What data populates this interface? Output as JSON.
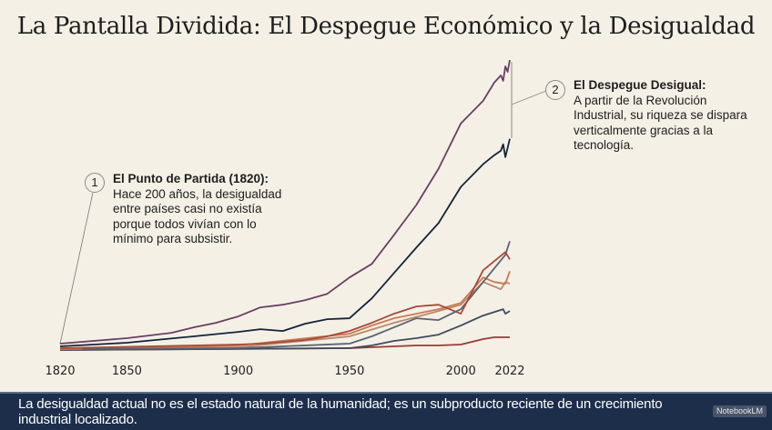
{
  "title": "La Pantalla Dividida: El Despegue Económico y la Desigualdad",
  "annotations": [
    {
      "number": "1",
      "heading": "El Punto de Partida (1820):",
      "lines": [
        "Hace 200 años, la desigualdad",
        "entre países casi no existía",
        "porque todos vivían con lo",
        "mínimo para subsistir."
      ]
    },
    {
      "number": "2",
      "heading": "El Despegue Desigual:",
      "lines": [
        "A partir de la Revolución",
        "Industrial, su riqueza se dispara",
        "verticalmente gracias a la",
        "tecnología."
      ]
    }
  ],
  "banner": {
    "text": "La desigualdad actual no es el estado natural de la humanidad; es un subproducto reciente de un crecimiento industrial localizado.",
    "watermark": "NotebookLM"
  },
  "chart_data": {
    "type": "line",
    "title": "",
    "xlabel": "",
    "ylabel": "",
    "xticks": [
      1820,
      1850,
      1900,
      1950,
      2000,
      2022
    ],
    "xlim": [
      1820,
      2022
    ],
    "ylim": [
      0,
      320
    ],
    "grid": false,
    "legend": "none",
    "series": [
      {
        "color": "#6b3f63",
        "points": [
          [
            1820,
            6
          ],
          [
            1850,
            12
          ],
          [
            1870,
            18
          ],
          [
            1880,
            24
          ],
          [
            1890,
            29
          ],
          [
            1900,
            36
          ],
          [
            1910,
            46
          ],
          [
            1920,
            49
          ],
          [
            1930,
            54
          ],
          [
            1940,
            61
          ],
          [
            1950,
            79
          ],
          [
            1960,
            94
          ],
          [
            1970,
            126
          ],
          [
            1980,
            159
          ],
          [
            1990,
            199
          ],
          [
            2000,
            249
          ],
          [
            2010,
            274
          ],
          [
            2015,
            294
          ],
          [
            2018,
            302
          ],
          [
            2019,
            296
          ],
          [
            2020,
            312
          ],
          [
            2021,
            306
          ],
          [
            2022,
            319
          ]
        ]
      },
      {
        "color": "#14233a",
        "points": [
          [
            1820,
            3
          ],
          [
            1850,
            7
          ],
          [
            1880,
            14
          ],
          [
            1900,
            19
          ],
          [
            1910,
            22
          ],
          [
            1920,
            20
          ],
          [
            1930,
            28
          ],
          [
            1940,
            33
          ],
          [
            1950,
            34
          ],
          [
            1960,
            56
          ],
          [
            1970,
            84
          ],
          [
            1980,
            112
          ],
          [
            1990,
            139
          ],
          [
            2000,
            179
          ],
          [
            2010,
            204
          ],
          [
            2015,
            214
          ],
          [
            2018,
            219
          ],
          [
            2019,
            226
          ],
          [
            2020,
            212
          ],
          [
            2021,
            222
          ],
          [
            2022,
            232
          ]
        ]
      },
      {
        "color": "#a8493a",
        "points": [
          [
            1820,
            1
          ],
          [
            1900,
            5
          ],
          [
            1910,
            6
          ],
          [
            1920,
            8
          ],
          [
            1930,
            10
          ],
          [
            1940,
            14
          ],
          [
            1950,
            20
          ],
          [
            1960,
            29
          ],
          [
            1970,
            39
          ],
          [
            1980,
            47
          ],
          [
            1990,
            49
          ],
          [
            2000,
            39
          ],
          [
            2010,
            87
          ],
          [
            2020,
            107
          ],
          [
            2022,
            99
          ]
        ]
      },
      {
        "color": "#5a6470",
        "points": [
          [
            1830,
            0
          ],
          [
            1900,
            1
          ],
          [
            1950,
            6
          ],
          [
            1960,
            14
          ],
          [
            1970,
            24
          ],
          [
            1980,
            34
          ],
          [
            1990,
            32
          ],
          [
            2000,
            44
          ],
          [
            2010,
            74
          ],
          [
            2020,
            104
          ],
          [
            2022,
            119
          ]
        ]
      },
      {
        "color": "#c87a52",
        "points": [
          [
            1820,
            0
          ],
          [
            1900,
            4
          ],
          [
            1950,
            17
          ],
          [
            1960,
            26
          ],
          [
            1970,
            34
          ],
          [
            1980,
            39
          ],
          [
            1990,
            44
          ],
          [
            2000,
            51
          ],
          [
            2010,
            79
          ],
          [
            2015,
            74
          ],
          [
            2020,
            72
          ],
          [
            2022,
            86
          ]
        ]
      },
      {
        "color": "#b98a6c",
        "points": [
          [
            1820,
            0
          ],
          [
            1900,
            2
          ],
          [
            1950,
            14
          ],
          [
            1970,
            29
          ],
          [
            1990,
            42
          ],
          [
            2000,
            49
          ],
          [
            2010,
            74
          ],
          [
            2018,
            66
          ],
          [
            2020,
            74
          ],
          [
            2022,
            72
          ]
        ]
      },
      {
        "color": "#3e4a5c",
        "points": [
          [
            1820,
            -1
          ],
          [
            1950,
            1
          ],
          [
            1960,
            4
          ],
          [
            1970,
            9
          ],
          [
            1980,
            12
          ],
          [
            1990,
            16
          ],
          [
            2000,
            26
          ],
          [
            2010,
            37
          ],
          [
            2019,
            44
          ],
          [
            2020,
            39
          ],
          [
            2022,
            42
          ]
        ]
      },
      {
        "color": "#9c3a34",
        "points": [
          [
            1820,
            -1
          ],
          [
            1950,
            1
          ],
          [
            1980,
            4
          ],
          [
            1990,
            4
          ],
          [
            2000,
            5
          ],
          [
            2010,
            11
          ],
          [
            2015,
            13
          ],
          [
            2022,
            13
          ]
        ]
      }
    ]
  }
}
